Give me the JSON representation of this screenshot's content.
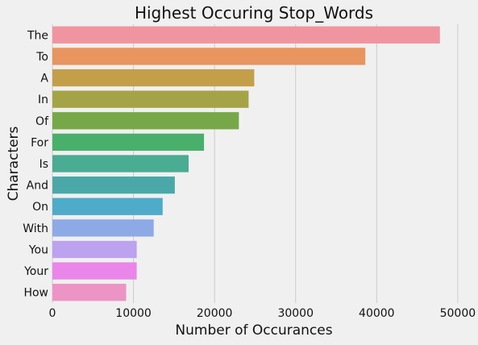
{
  "chart_data": {
    "type": "bar",
    "orientation": "horizontal",
    "title": "Highest Occuring Stop_Words",
    "xlabel": "Number of Occurances",
    "ylabel": "Characters",
    "categories": [
      "The",
      "To",
      "A",
      "In",
      "Of",
      "For",
      "Is",
      "And",
      "On",
      "With",
      "You",
      "Your",
      "How"
    ],
    "values": [
      47800,
      38600,
      24900,
      24200,
      23000,
      18700,
      16800,
      15100,
      13600,
      12500,
      10400,
      10400,
      9100
    ],
    "colors": [
      "#f0959f",
      "#e8955f",
      "#c49f4a",
      "#a4a446",
      "#77a848",
      "#48b06a",
      "#49ac93",
      "#4aa9a8",
      "#4eabc9",
      "#8eaae6",
      "#bca2ef",
      "#ea86e9",
      "#ec94c5"
    ],
    "xlim": [
      0,
      52000
    ],
    "xticks": [
      0,
      10000,
      20000,
      30000,
      40000,
      50000
    ],
    "xtick_labels": [
      "0",
      "10000",
      "20000",
      "30000",
      "40000",
      "50000"
    ],
    "grid": true,
    "grid_color": "#cbcbcb",
    "background_color": "#f0f0f0"
  }
}
